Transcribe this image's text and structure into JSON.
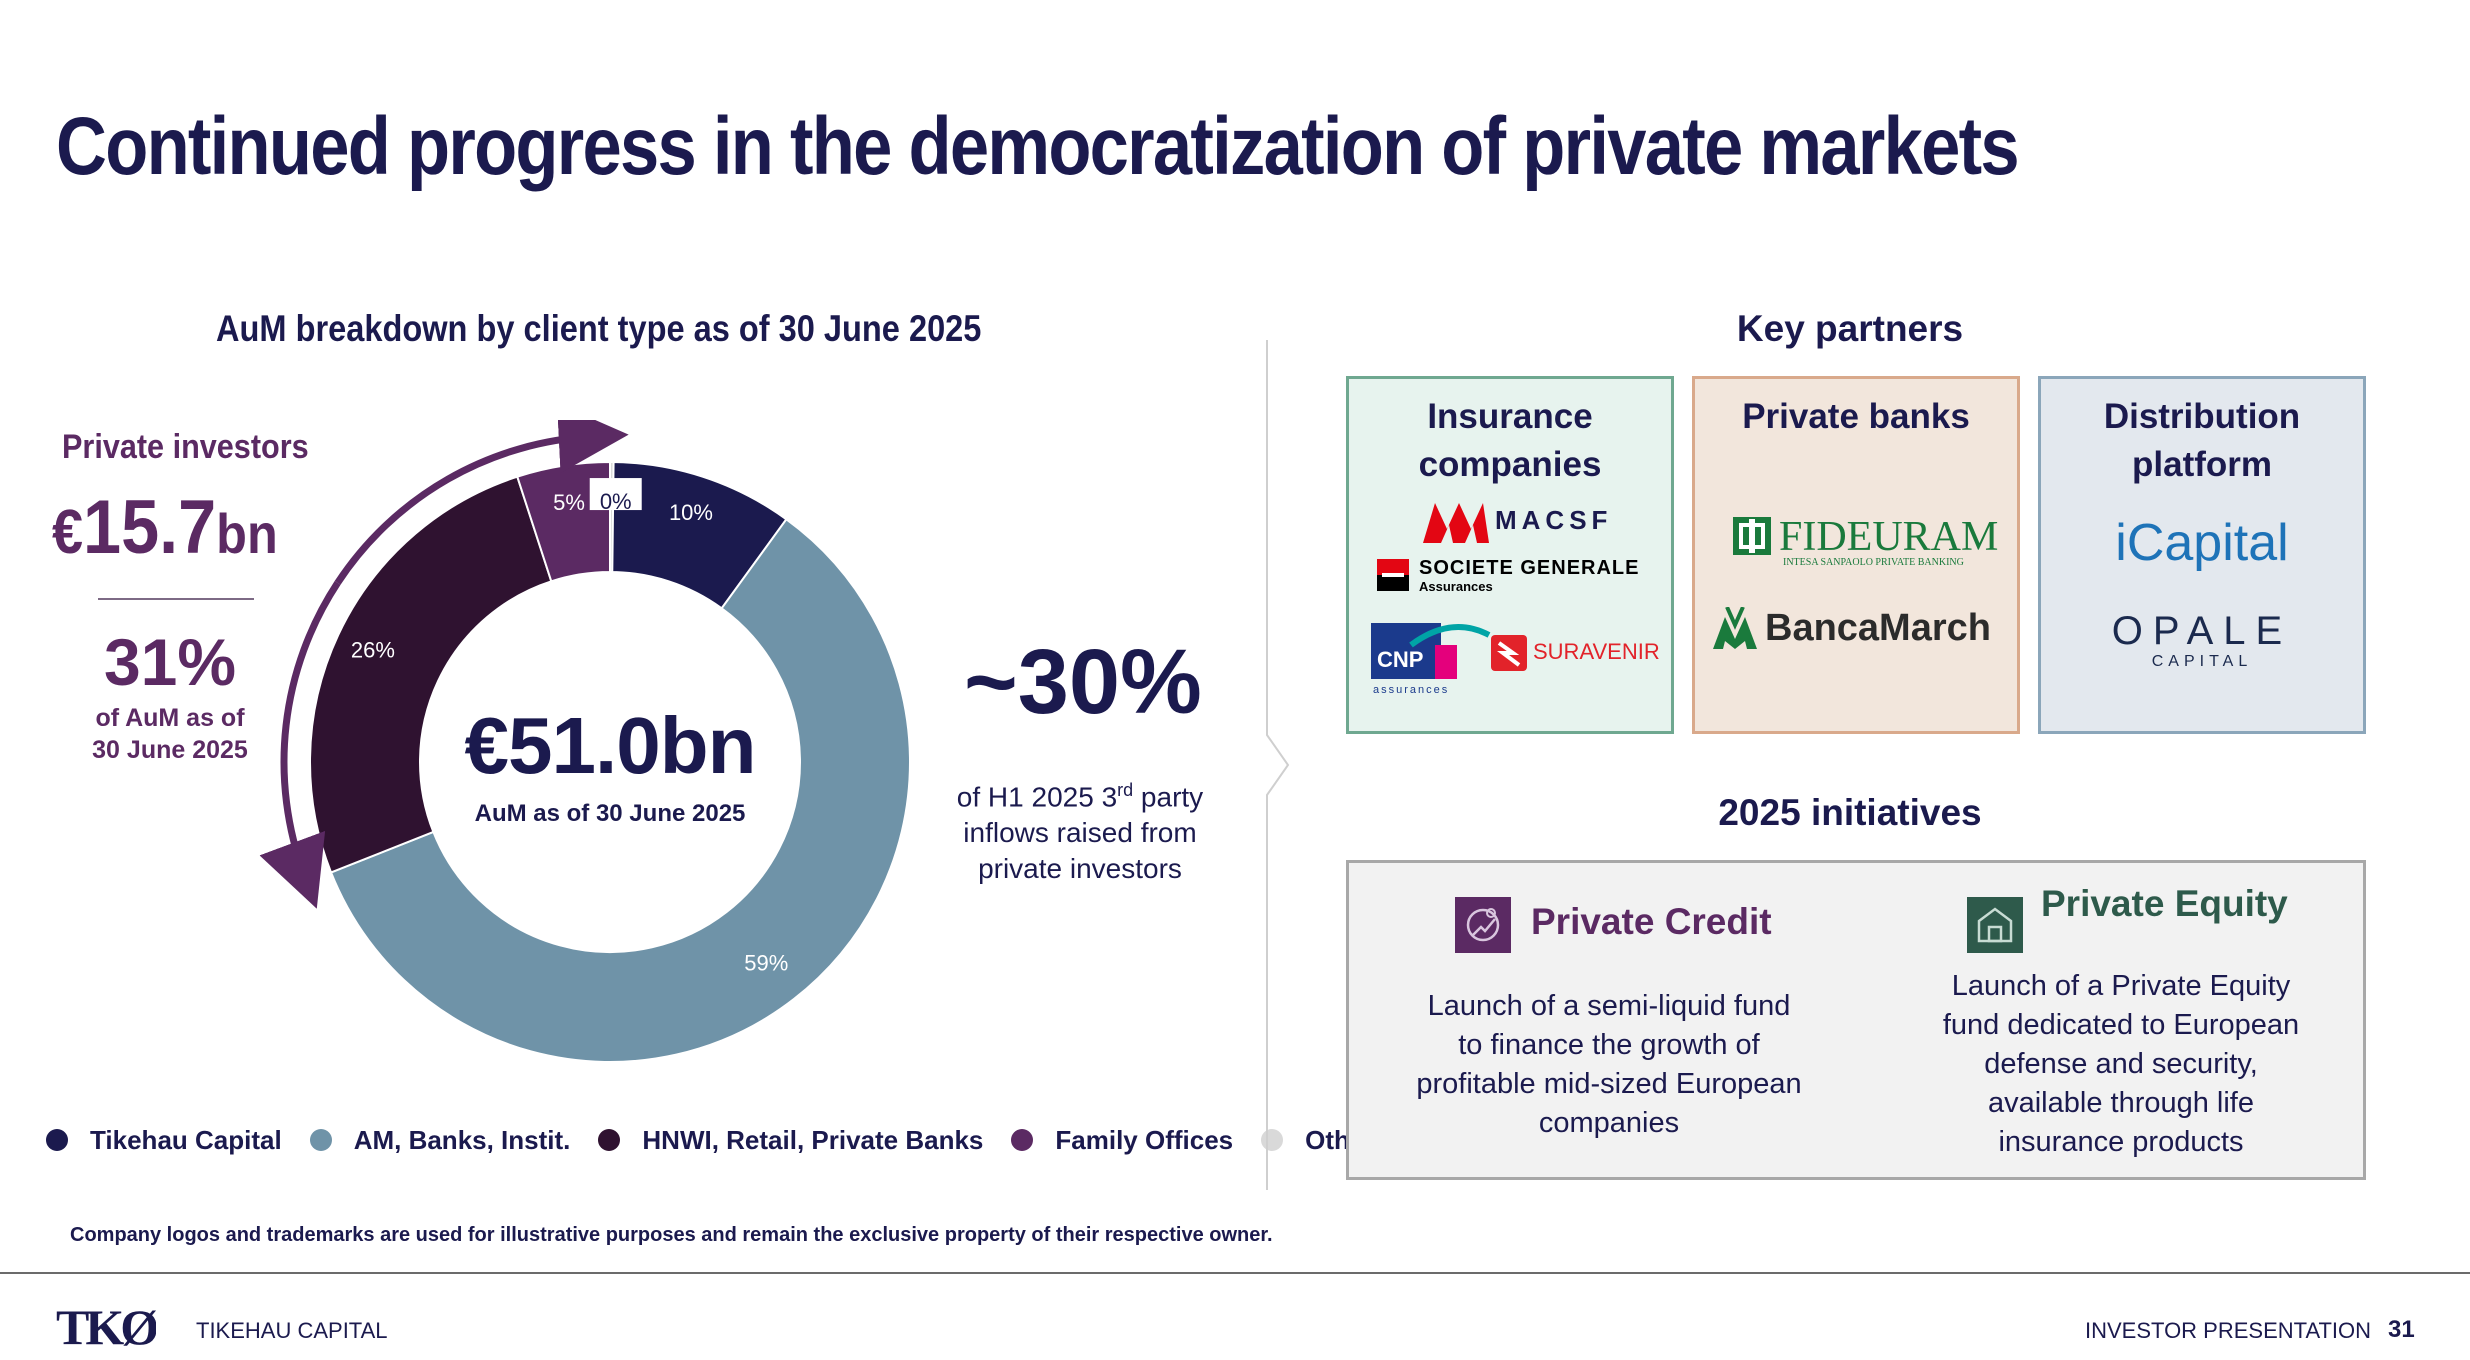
{
  "page": {
    "title": "Continued progress in the democratization of private markets",
    "footnote": "Company logos and trademarks are used for illustrative purposes and remain the exclusive property of their respective owner.",
    "footer_left": "TIKEHAU CAPITAL",
    "footer_right": "INVESTOR PRESENTATION",
    "page_number": "31",
    "logo_text": "TKØ"
  },
  "chart_section": {
    "title": "AuM breakdown by client type as of 30 June 2025",
    "center_value": "€51.0bn",
    "center_label": "AuM as of 30 June 2025"
  },
  "private_investors": {
    "label": "Private investors",
    "currency": "€",
    "amount": "15.7",
    "unit": "bn",
    "share": "31%",
    "share_note_1": "of AuM as of",
    "share_note_2": "30 June 2025"
  },
  "inflows": {
    "stat": "~30%",
    "line1_pre": "of H1 2025 3",
    "line1_sup": "rd",
    "line1_post": " party",
    "line2": "inflows raised from",
    "line3": "private investors"
  },
  "chart_data": {
    "type": "pie",
    "subtype": "donut",
    "title": "AuM breakdown by client type as of 30 June 2025",
    "categories": [
      "Tikehau Capital",
      "AM, Banks, Instit.",
      "HNWI, Retail, Private Banks",
      "Family Offices",
      "Other"
    ],
    "values": [
      10,
      59,
      26,
      5,
      0
    ],
    "labels": [
      "10%",
      "59%",
      "26%",
      "5%",
      "0%"
    ],
    "colors": [
      "#1b1a4e",
      "#6f93a8",
      "#2f1230",
      "#5b2a63",
      "#d9d9d9"
    ],
    "legend_position": "bottom"
  },
  "key_partners": {
    "title": "Key partners",
    "boxes": [
      {
        "title_1": "Insurance",
        "title_2": "companies",
        "logos": [
          "MACSF",
          "SOCIETE GENERALE",
          "Assurances",
          "CNP",
          "assurances",
          "SURAVENIR"
        ]
      },
      {
        "title_1": "Private banks",
        "title_2": "",
        "logos": [
          "FIDEURAM",
          "INTESA SANPAOLO PRIVATE BANKING",
          "BancaMarch"
        ]
      },
      {
        "title_1": "Distribution",
        "title_2": "platform",
        "logos": [
          "iCapital",
          "OPALE",
          "CAPITAL"
        ]
      }
    ]
  },
  "initiatives": {
    "title": "2025 initiatives",
    "items": [
      {
        "heading": "Private Credit",
        "text_lines": [
          "Launch of a semi-liquid fund",
          "to finance the growth of",
          "profitable mid-sized European",
          "companies"
        ],
        "color": "#5b2a63"
      },
      {
        "heading": "Private Equity",
        "text_lines": [
          "Launch of a Private Equity",
          "fund dedicated to European",
          "defense and security,",
          "available through life",
          "insurance products"
        ],
        "color": "#2e5a4b"
      }
    ]
  }
}
